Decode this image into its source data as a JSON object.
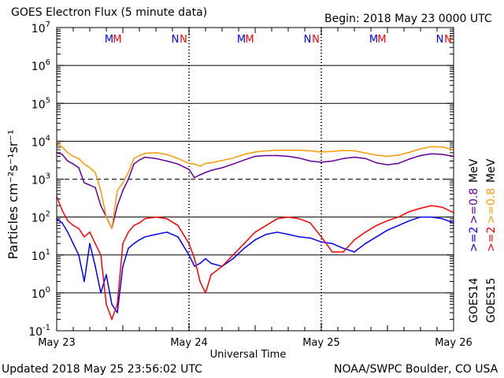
{
  "header": {
    "title": "GOES Electron Flux (5 minute data)",
    "begin": "Begin: 2018 May 23 0000 UTC"
  },
  "footer": {
    "updated": "Updated 2018 May 25 23:56:02 UTC",
    "credit": "NOAA/SWPC Boulder, CO USA"
  },
  "colors": {
    "goes14_2mev": "#0000ff",
    "goes15_2mev": "#ff0000",
    "goes14_08mev": "#660099",
    "goes15_08mev": "#ff9900",
    "m_marker_1": "#0000ff",
    "m_marker_2": "#ff0000"
  },
  "chart_data": {
    "type": "line",
    "title": "GOES Electron Flux (5 minute data)",
    "xlabel": "Universal Time",
    "ylabel": "Particles cm⁻²s⁻¹sr⁻¹",
    "yscale": "log",
    "ylim": [
      0.1,
      10000000
    ],
    "xlim": [
      0,
      72
    ],
    "x_unit": "hours since 2018 May 23 0000 UTC",
    "x_ticks": [
      {
        "x": 0,
        "label": "May 23"
      },
      {
        "x": 24,
        "label": "May 24"
      },
      {
        "x": 48,
        "label": "May 25"
      },
      {
        "x": 72,
        "label": "May 26"
      }
    ],
    "y_ticks": [
      {
        "value": 0.1,
        "base": "10",
        "exp": "-1"
      },
      {
        "value": 1,
        "base": "10",
        "exp": "0"
      },
      {
        "value": 10,
        "base": "10",
        "exp": "1"
      },
      {
        "value": 100,
        "base": "10",
        "exp": "2"
      },
      {
        "value": 1000,
        "base": "10",
        "exp": "3"
      },
      {
        "value": 10000,
        "base": "10",
        "exp": "4"
      },
      {
        "value": 100000,
        "base": "10",
        "exp": "5"
      },
      {
        "value": 1000000,
        "base": "10",
        "exp": "6"
      },
      {
        "value": 10000000,
        "base": "10",
        "exp": "7"
      }
    ],
    "threshold_lines": [
      {
        "value": 1000,
        "style": "dashed"
      }
    ],
    "day_boundaries": [
      24,
      48
    ],
    "markers": [
      {
        "label": "M",
        "x": 9.5,
        "color": "#0000ff"
      },
      {
        "label": "M",
        "x": 11.0,
        "color": "#ff0000"
      },
      {
        "label": "N",
        "x": 21.5,
        "color": "#0000ff"
      },
      {
        "label": "N",
        "x": 23.0,
        "color": "#ff0000"
      },
      {
        "label": "M",
        "x": 33.5,
        "color": "#0000ff"
      },
      {
        "label": "M",
        "x": 35.0,
        "color": "#ff0000"
      },
      {
        "label": "N",
        "x": 45.5,
        "color": "#0000ff"
      },
      {
        "label": "N",
        "x": 47.0,
        "color": "#ff0000"
      },
      {
        "label": "M",
        "x": 57.5,
        "color": "#0000ff"
      },
      {
        "label": "M",
        "x": 59.0,
        "color": "#ff0000"
      },
      {
        "label": "N",
        "x": 69.5,
        "color": "#0000ff"
      },
      {
        "label": "N",
        "x": 71.0,
        "color": "#ff0000"
      }
    ],
    "legend": {
      "placement": "right",
      "groups": [
        {
          "label": "GOES14",
          "entries": [
            {
              "text": ">=2",
              "color": "#0000ff"
            },
            {
              "text": ">=0.8",
              "color": "#660099"
            },
            {
              "text": "MeV",
              "color": "#000000"
            }
          ]
        },
        {
          "label": "GOES15",
          "entries": [
            {
              "text": ">=2",
              "color": "#ff0000"
            },
            {
              "text": ">=0.8",
              "color": "#ff9900"
            },
            {
              "text": "MeV",
              "color": "#000000"
            }
          ]
        }
      ]
    },
    "series": [
      {
        "name": "GOES14 >=0.8 MeV",
        "color": "#660099",
        "x": [
          0,
          1,
          2,
          3,
          4,
          5,
          6,
          7,
          8,
          9,
          10,
          11,
          12,
          13,
          14,
          15,
          16,
          18,
          20,
          22,
          24,
          25,
          26,
          27,
          28,
          30,
          32,
          34,
          36,
          38,
          40,
          42,
          44,
          46,
          48,
          50,
          52,
          54,
          56,
          58,
          60,
          62,
          64,
          66,
          68,
          70,
          72
        ],
        "values": [
          5000,
          4500,
          3000,
          2500,
          2000,
          800,
          700,
          600,
          200,
          100,
          50,
          200,
          500,
          1000,
          2500,
          3200,
          3800,
          3500,
          3000,
          2500,
          1800,
          1100,
          1300,
          1500,
          1700,
          2000,
          2500,
          3200,
          4000,
          4200,
          4200,
          4000,
          3600,
          3000,
          2800,
          3000,
          3500,
          3800,
          3500,
          2700,
          2400,
          2600,
          3400,
          4200,
          4700,
          4500,
          4000
        ]
      },
      {
        "name": "GOES15 >=0.8 MeV",
        "color": "#ff9900",
        "x": [
          0,
          1,
          2,
          3,
          4,
          5,
          6,
          7,
          8,
          9,
          10,
          11,
          12,
          13,
          14,
          15,
          16,
          18,
          20,
          22,
          24,
          25,
          26,
          27,
          28,
          30,
          32,
          34,
          36,
          38,
          40,
          42,
          44,
          46,
          48,
          50,
          52,
          54,
          56,
          58,
          60,
          62,
          64,
          66,
          68,
          70,
          72
        ],
        "values": [
          9000,
          7000,
          5000,
          4000,
          3500,
          2500,
          2000,
          1500,
          500,
          100,
          50,
          500,
          800,
          1500,
          3500,
          4200,
          4800,
          5000,
          4500,
          3500,
          2600,
          2500,
          2200,
          2600,
          2700,
          3100,
          3600,
          4500,
          5200,
          5600,
          5800,
          5800,
          5800,
          5600,
          5200,
          5400,
          5700,
          5600,
          4900,
          4300,
          4000,
          4300,
          5100,
          6300,
          7200,
          7000,
          6000
        ]
      },
      {
        "name": "GOES14 >=2 MeV",
        "color": "#0000ff",
        "x": [
          0,
          1,
          2,
          3,
          4,
          5,
          6,
          7,
          8,
          9,
          10,
          11,
          12,
          13,
          14,
          15,
          16,
          18,
          20,
          22,
          24,
          25,
          26,
          27,
          28,
          30,
          32,
          34,
          36,
          38,
          40,
          42,
          44,
          46,
          48,
          50,
          52,
          54,
          56,
          58,
          60,
          62,
          64,
          66,
          68,
          70,
          72
        ],
        "values": [
          90,
          70,
          40,
          20,
          10,
          2,
          20,
          5,
          1,
          3,
          0.5,
          0.3,
          5,
          15,
          20,
          25,
          30,
          35,
          40,
          30,
          10,
          5,
          6,
          8,
          6,
          5,
          8,
          15,
          25,
          35,
          40,
          35,
          30,
          28,
          22,
          20,
          15,
          12,
          20,
          30,
          45,
          60,
          80,
          100,
          100,
          90,
          70
        ]
      },
      {
        "name": "GOES15 >=2 MeV",
        "color": "#ff0000",
        "x": [
          0,
          1,
          2,
          3,
          4,
          5,
          6,
          7,
          8,
          9,
          10,
          11,
          12,
          13,
          14,
          15,
          16,
          18,
          20,
          22,
          24,
          25,
          26,
          27,
          28,
          30,
          32,
          34,
          36,
          38,
          40,
          42,
          44,
          46,
          48,
          50,
          52,
          54,
          56,
          58,
          60,
          62,
          64,
          66,
          68,
          70,
          72
        ],
        "values": [
          350,
          150,
          80,
          60,
          50,
          30,
          40,
          20,
          10,
          0.5,
          0.2,
          0.5,
          20,
          40,
          60,
          70,
          90,
          100,
          90,
          60,
          20,
          8,
          2,
          1,
          3,
          5,
          10,
          20,
          40,
          60,
          90,
          100,
          90,
          70,
          30,
          12,
          12,
          25,
          40,
          60,
          80,
          100,
          140,
          170,
          200,
          180,
          130
        ]
      }
    ]
  }
}
